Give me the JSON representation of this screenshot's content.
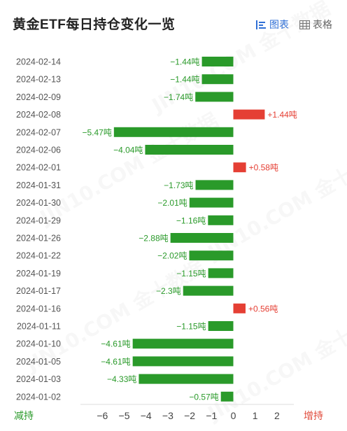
{
  "header": {
    "title": "黄金ETF每日持仓变化一览",
    "chart_view_label": "图表",
    "table_view_label": "表格"
  },
  "footer": {
    "reduce_label": "减持",
    "increase_label": "增持"
  },
  "watermark_text": "JIN10.COM 金十数据",
  "colors": {
    "negative": "#2a9a2a",
    "positive": "#e53f34",
    "accent": "#2f6fd6"
  },
  "chart_data": {
    "type": "bar",
    "orientation": "horizontal",
    "unit": "吨",
    "xlim": [
      -6.5,
      2.5
    ],
    "xticks": [
      -6,
      -5,
      -4,
      -3,
      -2,
      -1,
      0,
      1,
      2
    ],
    "xtick_labels": [
      "−6",
      "−5",
      "−4",
      "−3",
      "−2",
      "−1",
      "0",
      "1",
      "2"
    ],
    "categories": [
      "2024-02-14",
      "2024-02-13",
      "2024-02-09",
      "2024-02-08",
      "2024-02-07",
      "2024-02-06",
      "2024-02-01",
      "2024-01-31",
      "2024-01-30",
      "2024-01-29",
      "2024-01-26",
      "2024-01-22",
      "2024-01-19",
      "2024-01-17",
      "2024-01-16",
      "2024-01-11",
      "2024-01-10",
      "2024-01-05",
      "2024-01-03",
      "2024-01-02"
    ],
    "values": [
      -1.44,
      -1.44,
      -1.74,
      1.44,
      -5.47,
      -4.04,
      0.58,
      -1.73,
      -2.01,
      -1.16,
      -2.88,
      -2.02,
      -1.15,
      -2.3,
      0.56,
      -1.15,
      -4.61,
      -4.61,
      -4.33,
      -0.57
    ],
    "value_labels": [
      "−1.44吨",
      "−1.44吨",
      "−1.74吨",
      "+1.44吨",
      "−5.47吨",
      "−4.04吨",
      "+0.58吨",
      "−1.73吨",
      "−2.01吨",
      "−1.16吨",
      "−2.88吨",
      "−2.02吨",
      "−1.15吨",
      "−2.3吨",
      "+0.56吨",
      "−1.15吨",
      "−4.61吨",
      "−4.61吨",
      "−4.33吨",
      "−0.57吨"
    ],
    "grid": false,
    "legend": "none"
  }
}
